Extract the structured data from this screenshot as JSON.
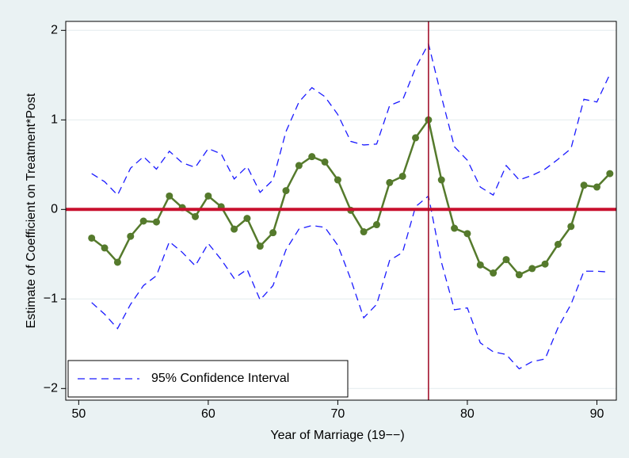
{
  "chart_data": {
    "type": "line",
    "x_label": "Year of Marriage (19−−)",
    "y_label": "Estimate of Coefficient on Treatment*Post",
    "x": [
      51,
      52,
      53,
      54,
      55,
      56,
      57,
      58,
      59,
      60,
      61,
      62,
      63,
      64,
      65,
      66,
      67,
      68,
      69,
      70,
      71,
      72,
      73,
      74,
      75,
      76,
      77,
      78,
      79,
      80,
      81,
      82,
      83,
      84,
      85,
      86,
      87,
      88,
      89,
      90,
      91
    ],
    "series": [
      {
        "color": "#557a2c",
        "style": "solid-markers",
        "values": [
          -0.32,
          -0.43,
          -0.59,
          -0.3,
          -0.13,
          -0.14,
          0.15,
          0.02,
          -0.08,
          0.15,
          0.03,
          -0.22,
          -0.1,
          -0.41,
          -0.26,
          0.21,
          0.49,
          0.59,
          0.53,
          0.33,
          -0.01,
          -0.25,
          -0.17,
          0.3,
          0.37,
          0.8,
          1.0,
          0.33,
          -0.21,
          -0.27,
          -0.62,
          -0.71,
          -0.56,
          -0.73,
          -0.66,
          -0.61,
          -0.39,
          -0.19,
          0.27,
          0.25,
          0.4
        ]
      },
      {
        "name": "95% Confidence Interval",
        "color": "#1a1aff",
        "style": "dashed",
        "values": [
          0.4,
          0.31,
          0.16,
          0.46,
          0.59,
          0.45,
          0.65,
          0.52,
          0.47,
          0.68,
          0.62,
          0.34,
          0.48,
          0.19,
          0.33,
          0.87,
          1.2,
          1.36,
          1.26,
          1.06,
          0.76,
          0.72,
          0.73,
          1.16,
          1.22,
          1.58,
          1.85,
          1.26,
          0.7,
          0.55,
          0.25,
          0.16,
          0.49,
          0.33,
          0.38,
          0.45,
          0.56,
          0.68,
          1.23,
          1.2,
          1.51
        ]
      },
      {
        "color": "#1a1aff",
        "style": "dashed",
        "values": [
          -1.04,
          -1.17,
          -1.33,
          -1.06,
          -0.85,
          -0.74,
          -0.36,
          -0.48,
          -0.63,
          -0.38,
          -0.56,
          -0.77,
          -0.67,
          -1.01,
          -0.85,
          -0.45,
          -0.22,
          -0.18,
          -0.2,
          -0.4,
          -0.78,
          -1.21,
          -1.06,
          -0.57,
          -0.48,
          0.03,
          0.15,
          -0.59,
          -1.12,
          -1.1,
          -1.49,
          -1.59,
          -1.62,
          -1.78,
          -1.7,
          -1.67,
          -1.32,
          -1.06,
          -0.69,
          -0.69,
          -0.7
        ]
      }
    ],
    "xlim": [
      49,
      91.5
    ],
    "ylim": [
      -2.13,
      2.1
    ],
    "xticks": [
      50,
      60,
      70,
      80,
      90
    ],
    "yticks": [
      {
        "value": -2,
        "label": "−2"
      },
      {
        "value": -1,
        "label": "−1"
      },
      0,
      1,
      2
    ],
    "hline": 0,
    "hline_color": "#c8102e",
    "vline": 77,
    "vline_color": "#a3122e",
    "grid": true,
    "legend": "lower left"
  }
}
